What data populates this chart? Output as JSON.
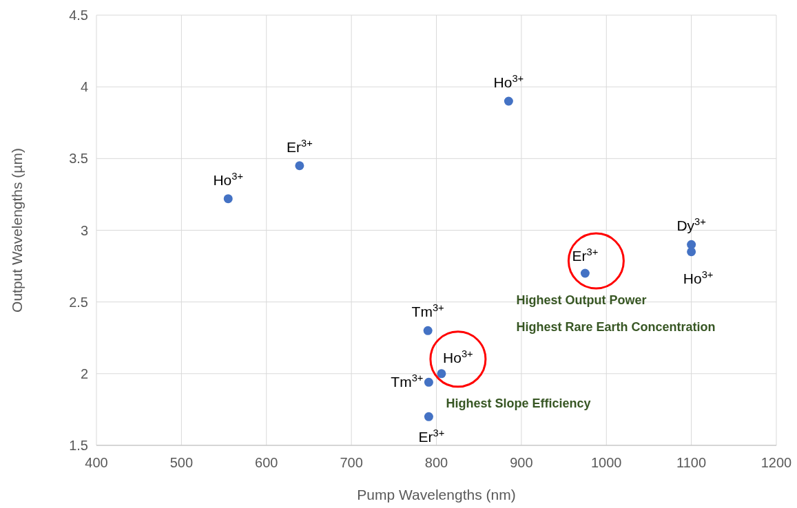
{
  "chart_data": {
    "type": "scatter",
    "xlabel": "Pump Wavelengths (nm)",
    "ylabel": "Output Wavelengths (µm)",
    "x": [
      555,
      639,
      885,
      1100,
      1100,
      975,
      790,
      806,
      791,
      791
    ],
    "series": [
      {
        "color": "#4472c4",
        "values": [
          3.22,
          3.45,
          3.9,
          2.9,
          2.85,
          2.7,
          2.3,
          2.0,
          1.94,
          1.7
        ]
      }
    ],
    "xlim": [
      400,
      1200
    ],
    "xticks": [
      400,
      500,
      600,
      700,
      800,
      900,
      1000,
      1100,
      1200
    ],
    "ylim": [
      1.5,
      4.5
    ],
    "yticks": [
      {
        "value": 1.5,
        "label": "1.5"
      },
      {
        "value": 2,
        "label": "2"
      },
      {
        "value": 2.5,
        "label": "2.5"
      },
      {
        "value": 3,
        "label": "3"
      },
      {
        "value": 3.5,
        "label": "3.5"
      },
      {
        "value": 4,
        "label": "4"
      },
      {
        "value": 4.5,
        "label": "4.5"
      }
    ],
    "grid": true,
    "marker": "circle",
    "annotations": [
      {
        "text": "Ho$^{3+}$",
        "x": 555,
        "y": 3.22
      },
      {
        "text": "Er$^{3+}$",
        "x": 639,
        "y": 3.45
      },
      {
        "text": "Ho$^{3+}$",
        "x": 885,
        "y": 3.9
      },
      {
        "text": "Dy$^{3+}$",
        "x": 1100,
        "y": 2.9
      },
      {
        "text": "Ho$^{3+}$",
        "x": 1100,
        "y": 2.85
      },
      {
        "text": "Er$^{3+}$",
        "x": 975,
        "y": 2.7
      },
      {
        "text": "Tm$^{3+}$",
        "x": 790,
        "y": 2.3
      },
      {
        "text": "Ho$^{3+}$",
        "x": 806,
        "y": 2.0
      },
      {
        "text": "Tm$^{3+}$",
        "x": 791,
        "y": 1.94
      },
      {
        "text": "Er$^{3+}$",
        "x": 791,
        "y": 1.7
      },
      "Highest Output Power",
      "Highest Rare Earth Concentration",
      "Highest Slope Efficiency"
    ]
  }
}
